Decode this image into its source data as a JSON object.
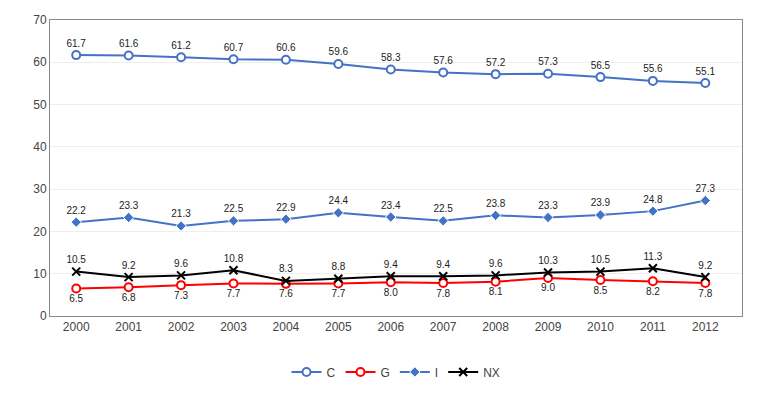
{
  "chart_data": {
    "type": "line",
    "x": [
      2000,
      2001,
      2002,
      2003,
      2004,
      2005,
      2006,
      2007,
      2008,
      2009,
      2010,
      2011,
      2012
    ],
    "series": [
      {
        "name": "C",
        "color": "#4472C4",
        "marker": "circle",
        "values": [
          61.7,
          61.6,
          61.2,
          60.7,
          60.6,
          59.6,
          58.3,
          57.6,
          57.2,
          57.3,
          56.5,
          55.6,
          55.1
        ]
      },
      {
        "name": "G",
        "color": "#FF0000",
        "marker": "circle",
        "values": [
          6.5,
          6.8,
          7.3,
          7.7,
          7.6,
          7.7,
          8.0,
          7.8,
          8.1,
          9.0,
          8.5,
          8.2,
          7.8
        ],
        "value_labels": [
          "6.5",
          "6.8",
          "7.3",
          "7.7",
          "7.6",
          "7.7",
          "8.0",
          "7.8",
          "8.1",
          "9.0",
          "8.5",
          "8.2",
          "7.8"
        ]
      },
      {
        "name": "I",
        "color": "#4472C4",
        "marker": "diamond",
        "values": [
          22.2,
          23.3,
          21.3,
          22.5,
          22.9,
          24.4,
          23.4,
          22.5,
          23.8,
          23.3,
          23.9,
          24.8,
          27.3
        ]
      },
      {
        "name": "NX",
        "color": "#000000",
        "marker": "x",
        "values": [
          10.5,
          9.2,
          9.6,
          10.8,
          8.3,
          8.8,
          9.4,
          9.4,
          9.6,
          10.3,
          10.5,
          11.3,
          9.2
        ]
      }
    ],
    "xlim": [
      1999.5,
      2012.7
    ],
    "xticks": [
      2000,
      2001,
      2002,
      2003,
      2004,
      2005,
      2006,
      2007,
      2008,
      2009,
      2010,
      2011,
      2012
    ],
    "ylim": [
      0,
      70
    ],
    "yticks": [
      0,
      10,
      20,
      30,
      40,
      50,
      60,
      70
    ],
    "grid": "y",
    "legend": "bottom",
    "data_labels": true
  }
}
